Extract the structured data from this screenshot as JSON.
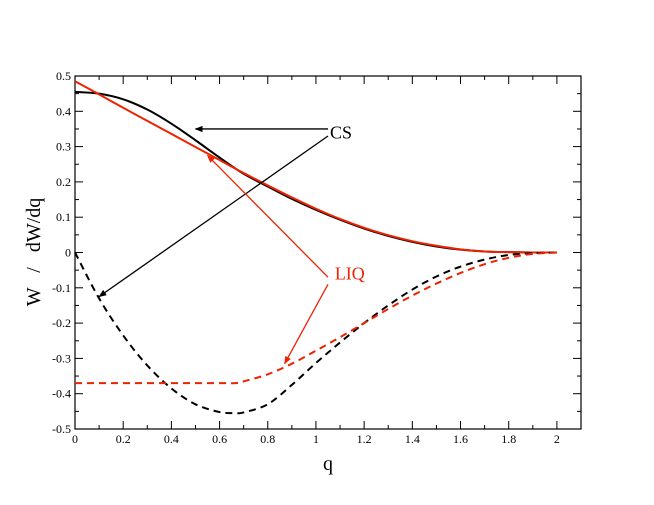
{
  "chart_data": {
    "type": "line",
    "xlabel": "q",
    "ylabel": "W   /   dW/dq",
    "xlim": [
      0,
      2.1
    ],
    "ylim": [
      -0.5,
      0.5
    ],
    "xticks": [
      0,
      0.2,
      0.4,
      0.6,
      0.8,
      1,
      1.2,
      1.4,
      1.6,
      1.8,
      2
    ],
    "xtick_labels": [
      "0",
      "0.2",
      "0.4",
      "0.6",
      "0.8",
      "1",
      "1.2",
      "1.4",
      "1.6",
      "1.8",
      "2"
    ],
    "yticks": [
      -0.5,
      -0.4,
      -0.3,
      -0.2,
      -0.1,
      0,
      0.1,
      0.2,
      0.3,
      0.4,
      0.5
    ],
    "ytick_labels": [
      "-0.5",
      "-0.4",
      "-0.3",
      "-0.2",
      "-0.1",
      "0",
      "0.1",
      "0.2",
      "0.3",
      "0.4",
      "0.5"
    ],
    "grid": false,
    "series": [
      {
        "color": "#000000",
        "dash": "solid",
        "x": [
          0,
          0.1,
          0.2,
          0.3,
          0.4,
          0.5,
          0.6,
          0.7,
          0.8,
          0.9,
          1.0,
          1.1,
          1.2,
          1.3,
          1.4,
          1.5,
          1.6,
          1.7,
          1.8,
          1.9,
          2.0
        ],
        "y": [
          0.455,
          0.45,
          0.434,
          0.405,
          0.365,
          0.318,
          0.269,
          0.223,
          0.187,
          0.152,
          0.121,
          0.093,
          0.068,
          0.047,
          0.03,
          0.017,
          0.008,
          0.003,
          0.001,
          0.0,
          0.0
        ]
      },
      {
        "color": "#ee2200",
        "dash": "solid",
        "x": [
          0,
          0.1,
          0.2,
          0.3,
          0.4,
          0.5,
          0.6,
          0.7,
          0.8,
          0.9,
          1.0,
          1.1,
          1.2,
          1.3,
          1.4,
          1.5,
          1.6,
          1.7,
          1.8,
          1.9,
          2.0
        ],
        "y": [
          0.485,
          0.448,
          0.41,
          0.373,
          0.336,
          0.299,
          0.262,
          0.225,
          0.19,
          0.156,
          0.124,
          0.095,
          0.07,
          0.049,
          0.032,
          0.019,
          0.009,
          0.003,
          0.001,
          0.0,
          0.0
        ]
      },
      {
        "color": "#000000",
        "dash": "dashed",
        "x": [
          0,
          0.1,
          0.2,
          0.3,
          0.4,
          0.5,
          0.6,
          0.667,
          0.7,
          0.8,
          0.9,
          1.0,
          1.1,
          1.2,
          1.3,
          1.4,
          1.5,
          1.6,
          1.7,
          1.8,
          1.9,
          2.0
        ],
        "y": [
          0.0,
          -0.13,
          -0.235,
          -0.32,
          -0.385,
          -0.43,
          -0.452,
          -0.455,
          -0.453,
          -0.43,
          -0.375,
          -0.313,
          -0.255,
          -0.2,
          -0.15,
          -0.105,
          -0.068,
          -0.04,
          -0.02,
          -0.007,
          -0.002,
          0.0
        ]
      },
      {
        "color": "#ee2200",
        "dash": "dashed",
        "x": [
          0,
          0.1,
          0.2,
          0.3,
          0.4,
          0.5,
          0.6,
          0.667,
          0.7,
          0.8,
          0.9,
          1.0,
          1.1,
          1.2,
          1.3,
          1.4,
          1.5,
          1.6,
          1.7,
          1.8,
          1.9,
          2.0
        ],
        "y": [
          -0.37,
          -0.37,
          -0.37,
          -0.37,
          -0.37,
          -0.37,
          -0.37,
          -0.37,
          -0.365,
          -0.345,
          -0.315,
          -0.278,
          -0.24,
          -0.2,
          -0.16,
          -0.122,
          -0.088,
          -0.058,
          -0.033,
          -0.015,
          -0.004,
          0.0
        ]
      }
    ],
    "annotations": [
      {
        "text": "CS",
        "color": "#000000",
        "label_at": [
          1.05,
          0.34
        ],
        "arrows": [
          {
            "from": [
              1.05,
              0.35
            ],
            "to": [
              0.5,
              0.35
            ]
          },
          {
            "from": [
              1.05,
              0.33
            ],
            "to": [
              0.1,
              -0.125
            ]
          }
        ]
      },
      {
        "text": "LIQ",
        "color": "#ee2200",
        "label_at": [
          1.07,
          -0.06
        ],
        "arrows": [
          {
            "from": [
              1.05,
              -0.07
            ],
            "to": [
              0.55,
              0.275
            ]
          },
          {
            "from": [
              1.05,
              -0.09
            ],
            "to": [
              0.87,
              -0.315
            ]
          }
        ]
      }
    ]
  }
}
